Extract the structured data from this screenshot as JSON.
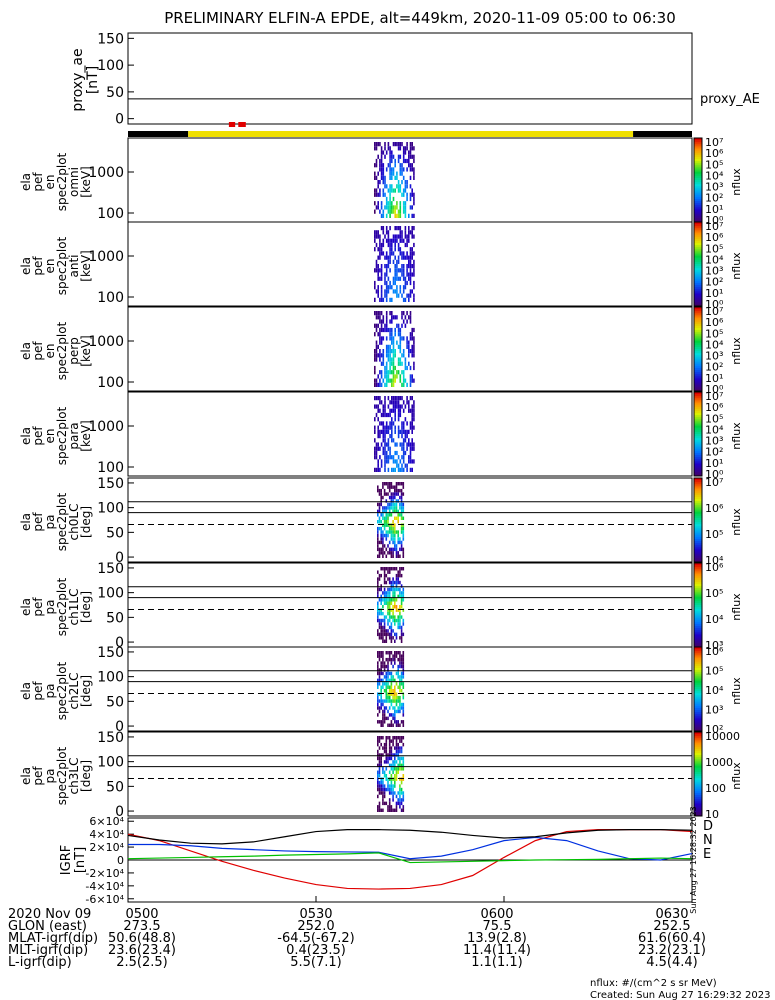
{
  "title": "PRELIMINARY ELFIN-A EPDE, alt=449km, 2020-11-09 05:00 to 06:30",
  "ae_panel": {
    "ylabel": "proxy_ae\n[nT]",
    "yticks": [
      "0",
      "50",
      "100",
      "150"
    ],
    "ylim": [
      -10,
      160
    ],
    "flat_value": 37,
    "legend": "proxy_AE"
  },
  "spectrogram_panels": [
    {
      "ylabel": [
        "ela",
        "pef",
        "en",
        "spec2plot",
        "omni",
        "[keV]"
      ],
      "yticks": [
        "100",
        "1000"
      ],
      "cb_ticks": [
        "10⁰",
        "10¹",
        "10²",
        "10³",
        "10⁴",
        "10⁵",
        "10⁶",
        "10⁷"
      ],
      "cb_label": "nflux"
    },
    {
      "ylabel": [
        "ela",
        "pef",
        "en",
        "spec2plot",
        "anti",
        "[keV]"
      ],
      "yticks": [
        "100",
        "1000"
      ],
      "cb_ticks": [
        "10⁰",
        "10¹",
        "10²",
        "10³",
        "10⁴",
        "10⁵",
        "10⁶",
        "10⁷"
      ],
      "cb_label": "nflux"
    },
    {
      "ylabel": [
        "ela",
        "pef",
        "en",
        "spec2plot",
        "perp",
        "[keV]"
      ],
      "yticks": [
        "100",
        "1000"
      ],
      "cb_ticks": [
        "10⁰",
        "10¹",
        "10²",
        "10³",
        "10⁴",
        "10⁵",
        "10⁶",
        "10⁷"
      ],
      "cb_label": "nflux"
    },
    {
      "ylabel": [
        "ela",
        "pef",
        "en",
        "spec2plot",
        "para",
        "[keV]"
      ],
      "yticks": [
        "100",
        "1000"
      ],
      "cb_ticks": [
        "10⁰",
        "10¹",
        "10²",
        "10³",
        "10⁴",
        "10⁵",
        "10⁶",
        "10⁷"
      ],
      "cb_label": "nflux"
    },
    {
      "ylabel": [
        "ela",
        "pef",
        "pa",
        "spec2plot",
        "ch0LC",
        "[deg]"
      ],
      "yticks": [
        "0",
        "50",
        "100",
        "150"
      ],
      "cb_ticks": [
        "10⁴",
        "10⁵",
        "10⁶",
        "10⁷"
      ],
      "cb_label": "nflux"
    },
    {
      "ylabel": [
        "ela",
        "pef",
        "pa",
        "spec2plot",
        "ch1LC",
        "[deg]"
      ],
      "yticks": [
        "0",
        "50",
        "100",
        "150"
      ],
      "cb_ticks": [
        "10³",
        "10⁴",
        "10⁵",
        "10⁶"
      ],
      "cb_label": "nflux"
    },
    {
      "ylabel": [
        "ela",
        "pef",
        "pa",
        "spec2plot",
        "ch2LC",
        "[deg]"
      ],
      "yticks": [
        "0",
        "50",
        "100",
        "150"
      ],
      "cb_ticks": [
        "10²",
        "10³",
        "10⁴",
        "10⁵",
        "10⁶"
      ],
      "cb_label": "nflux"
    },
    {
      "ylabel": [
        "ela",
        "pef",
        "pa",
        "spec2plot",
        "ch3LC",
        "[deg]"
      ],
      "yticks": [
        "0",
        "50",
        "100",
        "150"
      ],
      "cb_ticks": [
        "10",
        "100",
        "1000",
        "10000"
      ],
      "cb_label": "nflux"
    }
  ],
  "igrf_panel": {
    "ylabel": "IGRF\n[nT]",
    "yticks": [
      "-6×10⁴",
      "-4×10⁴",
      "-2×10⁴",
      "0",
      "2×10⁴",
      "4×10⁴",
      "6×10⁴"
    ],
    "legend": [
      "D",
      "N",
      "E"
    ],
    "legend_colors": [
      "#e00000",
      "#0030e0",
      "#00c000"
    ],
    "side_stamp": "Sun Aug 27 16:28:32 2023"
  },
  "chart_data": {
    "type": "line",
    "title": "PRELIMINARY ELFIN-A EPDE, alt=449km, 2020-11-09 05:00 to 06:30",
    "xticks": [
      "0500",
      "0530",
      "0600",
      "0630"
    ],
    "xlim_minutes": [
      0,
      90
    ],
    "series": [
      {
        "name": "proxy_AE",
        "x": [
          0,
          90
        ],
        "y": [
          37,
          37
        ]
      },
      {
        "name": "D",
        "x": [
          0,
          5,
          10,
          15,
          20,
          25,
          30,
          35,
          40,
          45,
          50,
          55,
          60,
          65,
          70,
          75,
          80,
          85,
          90
        ],
        "y": [
          40000,
          30000,
          14000,
          -2000,
          -16000,
          -28000,
          -38000,
          -44000,
          -45000,
          -44000,
          -38000,
          -24000,
          4000,
          30000,
          44000,
          47000,
          47000,
          47000,
          44000
        ]
      },
      {
        "name": "N",
        "x": [
          0,
          5,
          10,
          15,
          20,
          25,
          30,
          35,
          40,
          45,
          50,
          55,
          60,
          65,
          70,
          75,
          80,
          85,
          90
        ],
        "y": [
          24000,
          24000,
          22000,
          18000,
          16000,
          14000,
          13000,
          12500,
          12000,
          2000,
          6000,
          16000,
          30000,
          35000,
          30000,
          14000,
          2000,
          0,
          10000
        ]
      },
      {
        "name": "E",
        "x": [
          0,
          5,
          10,
          15,
          20,
          25,
          30,
          35,
          40,
          45,
          50,
          55,
          60,
          65,
          70,
          75,
          80,
          85,
          90
        ],
        "y": [
          2000,
          3000,
          4000,
          5000,
          6000,
          7500,
          8500,
          9500,
          11000,
          -4000,
          -3000,
          -2000,
          -1000,
          0,
          500,
          1000,
          2000,
          3000,
          2000
        ]
      },
      {
        "name": "",
        "x": [
          0,
          5,
          10,
          15,
          20,
          25,
          30,
          35,
          40,
          45,
          50,
          55,
          60,
          65,
          70,
          75,
          80,
          85,
          90
        ],
        "y": [
          38000,
          31000,
          26000,
          25000,
          28000,
          36000,
          44000,
          47000,
          47000,
          46000,
          43000,
          38000,
          34000,
          36000,
          42000,
          46000,
          47000,
          47000,
          46000
        ]
      }
    ],
    "bar_segments": [
      {
        "x": [
          0,
          9.6
        ],
        "color": "#000000"
      },
      {
        "x": [
          9.6,
          80.6
        ],
        "color": "#f0e000"
      },
      {
        "x": [
          80.6,
          90
        ],
        "color": "#000000"
      }
    ],
    "red_marks": [
      {
        "x": [
          16.1,
          17.1
        ]
      },
      {
        "x": [
          17.6,
          18.8
        ]
      }
    ]
  },
  "footer": {
    "rows": [
      {
        "label": "2020 Nov 09",
        "values": [
          "0500",
          "0530",
          "0600",
          "0630"
        ]
      },
      {
        "label": "GLON (east)",
        "values": [
          "273.5",
          "252.0",
          "75.5",
          "252.5"
        ]
      },
      {
        "label": "MLAT-igrf(dip)",
        "values": [
          "50.6(48.8)",
          "-64.5(-67.2)",
          "13.9(2.8)",
          "61.6(60.4)"
        ]
      },
      {
        "label": "MLT-igrf(dip)",
        "values": [
          "23.6(23.4)",
          "0.4(23.5)",
          "11.4(11.4)",
          "23.2(23.1)"
        ]
      },
      {
        "label": "L-igrf(dip)",
        "values": [
          "2.5(2.5)",
          "5.5(7.1)",
          "1.1(1.1)",
          "4.5(4.4)"
        ]
      }
    ],
    "units_note": "nflux: #/(cm^2 s sr MeV)",
    "created": "Created: Sun Aug 27 16:29:32 2023"
  }
}
